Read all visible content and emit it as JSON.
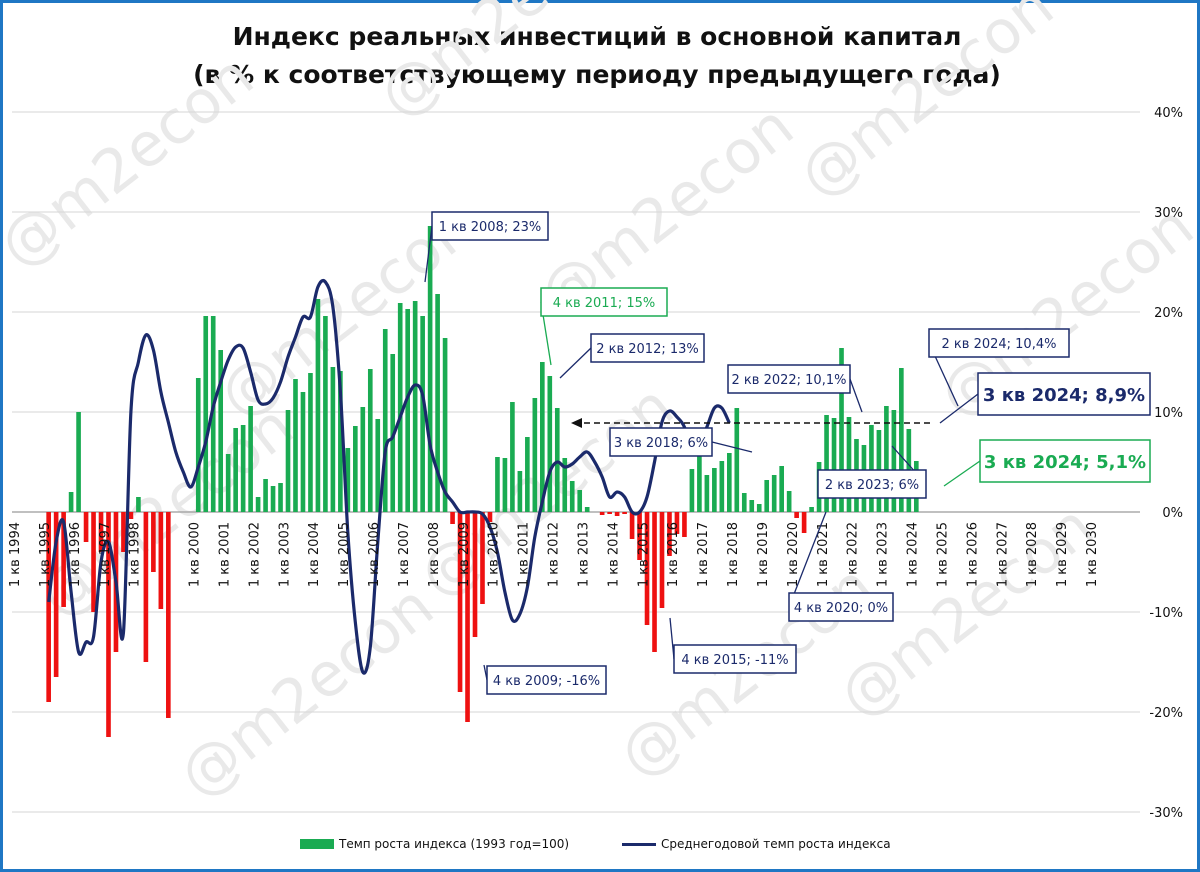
{
  "title": {
    "line1": "Индекс реальных инвестиций в основной капитал",
    "line2": "(в % к соответствующему периоду предыдущего года)"
  },
  "watermark": "@m2econ",
  "colors": {
    "positive": "#1aab52",
    "negative": "#ee1111",
    "line": "#1b2a6b",
    "frame": "#1f77c4"
  },
  "legend": {
    "bar_label": "Темп роста индекса (1993 год=100)",
    "line_label": "Среднегодовой темп роста индекса"
  },
  "chart_data": {
    "type": "bar",
    "ylim": [
      -30,
      40
    ],
    "y_ticks": [
      40,
      30,
      20,
      10,
      0,
      -10,
      -20,
      -30
    ],
    "y_tick_labels": [
      "40%",
      "30%",
      "20%",
      "10%",
      "0%",
      "-10%",
      "-20%",
      "-30%"
    ],
    "y_axis_position": "right",
    "grid": true,
    "x_labels": [
      "1 кв 1994",
      "1 кв 1995",
      "1 кв 1996",
      "1 кв 1997",
      "1 кв 1998",
      "1 кв 2000",
      "1 кв 2001",
      "1 кв 2002",
      "1 кв 2003",
      "1 кв 2004",
      "1 кв 2005",
      "1 кв 2006",
      "1 кв 2007",
      "1 кв 2008",
      "1 кв 2009",
      "1 кв 2010",
      "1 кв 2011",
      "1 кв 2012",
      "1 кв 2013",
      "1 кв 2014",
      "1 кв 2015",
      "1 кв 2016",
      "1 кв 2017",
      "1 кв 2018",
      "1 кв 2019",
      "1 кв 2020",
      "1 кв 2021",
      "1 кв 2022",
      "1 кв 2023",
      "1 кв 2024",
      "1 кв 2025",
      "1 кв 2026",
      "1 кв 2027",
      "1 кв 2028",
      "1 кв 2029",
      "1 кв 2030"
    ],
    "label_quarter_index": [
      0,
      4,
      8,
      12,
      16,
      24,
      28,
      32,
      36,
      40,
      44,
      48,
      52,
      56,
      60,
      64,
      68,
      72,
      76,
      80,
      84,
      88,
      92,
      96,
      100,
      104,
      108,
      112,
      116,
      120,
      124,
      128,
      132,
      136,
      140,
      144
    ],
    "total_quarters": 148,
    "series": [
      {
        "name": "Темп роста индекса (1993 год=100)",
        "type": "bar",
        "start_quarter": "1 кв 1994",
        "values": [
          0,
          0,
          0,
          0,
          -19,
          -16.5,
          -9.5,
          2,
          10,
          -3,
          -10,
          -4,
          -22.5,
          -14,
          -4,
          -0.7,
          1.5,
          -15,
          -6,
          -9.7,
          -20.6,
          0,
          0,
          0,
          13.4,
          19.6,
          19.6,
          16.2,
          5.8,
          8.4,
          8.7,
          10.6,
          1.5,
          3.3,
          2.6,
          2.9,
          10.2,
          13.3,
          12,
          13.9,
          21.3,
          19.6,
          14.5,
          14.1,
          6.4,
          8.6,
          10.5,
          14.3,
          9.3,
          18.3,
          15.8,
          20.9,
          20.3,
          21.1,
          19.6,
          28.6,
          21.8,
          17.4,
          -1.2,
          -18,
          -21,
          -12.5,
          -9.2,
          -1,
          5.5,
          5.4,
          11,
          4.1,
          7.5,
          11.4,
          15,
          13.6,
          10.4,
          5.4,
          3.1,
          2.2,
          0.5,
          0,
          -0.3,
          -0.2,
          -0.4,
          -0.2,
          -2.7,
          -4.8,
          -11.3,
          -14,
          -9.6,
          -4.4,
          -2.2,
          -2.5,
          4.3,
          5.9,
          3.7,
          4.4,
          5.1,
          5.9,
          10.4,
          1.9,
          1.2,
          0.8,
          3.2,
          3.7,
          4.6,
          2.1,
          -0.6,
          -2.1,
          0.5,
          5,
          9.7,
          9.4,
          16.4,
          9.5,
          7.3,
          6.7,
          8.7,
          8.2,
          10.6,
          10.2,
          14.4,
          8.3,
          5.1
        ]
      },
      {
        "name": "Среднегодовой темп роста индекса",
        "type": "line",
        "start_quarter": "1 кв 1995",
        "values": [
          -9,
          -3,
          -1,
          -8,
          -14,
          -13,
          -12.5,
          -5,
          -3,
          -7,
          -12,
          10,
          15,
          17.7,
          16.2,
          12,
          9,
          6,
          4,
          2.5,
          4.5,
          7,
          10.5,
          13,
          15.2,
          16.5,
          16.4,
          14,
          11.2,
          10.8,
          11.4,
          13,
          15.5,
          17.5,
          19.5,
          19.5,
          22.5,
          23,
          20.5,
          12,
          -2,
          -11,
          -16,
          -13.5,
          -3,
          6,
          7.5,
          9.5,
          11.5,
          12.7,
          11.7,
          6.7,
          4,
          2,
          1,
          0,
          0,
          0,
          -0.2,
          -1.5,
          -4,
          -8,
          -10.8,
          -10.2,
          -7.5,
          -2.5,
          1,
          4,
          5,
          4.5,
          4.8,
          5.5,
          6,
          5,
          3.5,
          1.5,
          2,
          1.5,
          0,
          0,
          1.5,
          5,
          9,
          10.1,
          9.5,
          8.5,
          6,
          6.8,
          8.5,
          10.4,
          10.4,
          8.9
        ]
      }
    ],
    "annotations": [
      {
        "text": "1 кв 2008; 23%",
        "color": "line"
      },
      {
        "text": "4 кв 2011; 15%",
        "color": "positive"
      },
      {
        "text": "2 кв 2012; 13%",
        "color": "line"
      },
      {
        "text": "2 кв 2022; 10,1%",
        "color": "line"
      },
      {
        "text": "2 кв 2024; 10,4%",
        "color": "line"
      },
      {
        "text": "3 кв 2024; 8,9%",
        "color": "line"
      },
      {
        "text": "3 кв 2024; 5,1%",
        "color": "positive"
      },
      {
        "text": "3 кв 2018; 6%",
        "color": "line"
      },
      {
        "text": "2 кв 2023; 6%",
        "color": "line"
      },
      {
        "text": "4 кв 2020; 0%",
        "color": "line"
      },
      {
        "text": "4 кв 2015; -11%",
        "color": "line"
      },
      {
        "text": "4 кв 2009; -16%",
        "color": "line"
      }
    ]
  }
}
